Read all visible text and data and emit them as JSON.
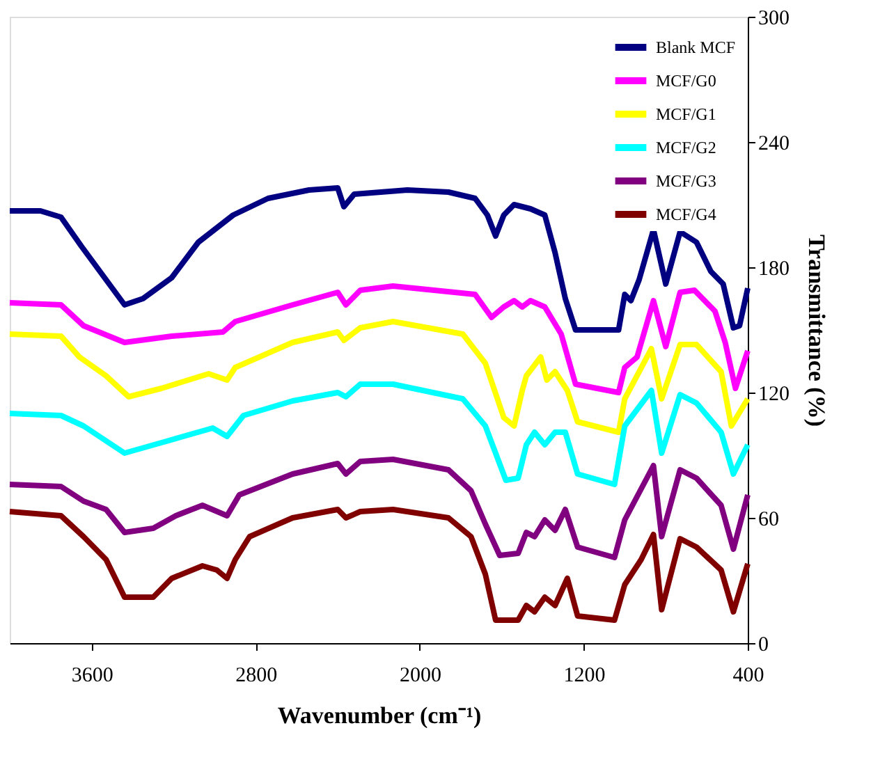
{
  "chart_data": {
    "type": "line",
    "xlabel": "Wavenumber (cm⁻¹)",
    "ylabel": "Transmittance (%)",
    "xlim": [
      4000,
      400
    ],
    "ylim": [
      0,
      300
    ],
    "xticks": [
      3600,
      2800,
      2000,
      1200,
      400
    ],
    "yticks": [
      0,
      60,
      120,
      180,
      240,
      300
    ],
    "grid": false,
    "legend": "top right",
    "marker": "none",
    "line_style": "solid",
    "series": [
      {
        "name": "Blank MCF",
        "color": "#000080",
        "x": [
          4000,
          3850,
          3750,
          3650,
          3440,
          3350,
          3210,
          3080,
          2910,
          2740,
          2540,
          2400,
          2370,
          2320,
          2060,
          1860,
          1730,
          1670,
          1630,
          1590,
          1540,
          1460,
          1390,
          1340,
          1290,
          1240,
          1030,
          1000,
          970,
          930,
          860,
          800,
          730,
          650,
          580,
          520,
          470,
          440,
          400
        ],
        "values": [
          207,
          207,
          204,
          190,
          162,
          165,
          175,
          192,
          205,
          213,
          217,
          218,
          209,
          215,
          217,
          216,
          213,
          205,
          195,
          205,
          210,
          208,
          205,
          187,
          165,
          150,
          150,
          167,
          164,
          174,
          198,
          172,
          197,
          192,
          178,
          172,
          151,
          152,
          170
        ]
      },
      {
        "name": "MCF/G0",
        "color": "#ff00ff",
        "x": [
          4000,
          3750,
          3640,
          3440,
          3210,
          2960,
          2900,
          2620,
          2400,
          2360,
          2290,
          2130,
          1730,
          1650,
          1590,
          1540,
          1500,
          1460,
          1390,
          1310,
          1240,
          1030,
          1000,
          940,
          860,
          800,
          730,
          660,
          560,
          510,
          460,
          400
        ],
        "values": [
          163,
          162,
          152,
          144,
          147,
          149,
          154,
          162,
          168,
          162,
          169,
          171,
          167,
          156,
          161,
          164,
          161,
          164,
          161,
          148,
          124,
          120,
          132,
          137,
          164,
          142,
          168,
          169,
          159,
          144,
          122,
          140
        ]
      },
      {
        "name": "MCF/G1",
        "color": "#ffff00",
        "x": [
          4000,
          3750,
          3660,
          3530,
          3420,
          3260,
          3030,
          2940,
          2900,
          2620,
          2400,
          2370,
          2290,
          2130,
          1790,
          1680,
          1590,
          1540,
          1500,
          1480,
          1410,
          1380,
          1340,
          1280,
          1230,
          1030,
          1000,
          870,
          820,
          730,
          650,
          530,
          480,
          400
        ],
        "values": [
          148,
          147,
          137,
          128,
          118,
          122,
          129,
          126,
          132,
          144,
          149,
          145,
          151,
          154,
          148,
          134,
          108,
          104,
          121,
          128,
          137,
          126,
          130,
          121,
          106,
          101,
          117,
          141,
          117,
          143,
          143,
          130,
          104,
          117
        ]
      },
      {
        "name": "MCF/G2",
        "color": "#00ffff",
        "x": [
          4000,
          3750,
          3640,
          3440,
          3260,
          3010,
          2940,
          2860,
          2620,
          2400,
          2360,
          2290,
          2130,
          1790,
          1680,
          1580,
          1520,
          1480,
          1440,
          1390,
          1340,
          1290,
          1230,
          1050,
          1000,
          870,
          820,
          730,
          650,
          530,
          470,
          400
        ],
        "values": [
          110,
          109,
          104,
          91,
          96,
          103,
          99,
          109,
          116,
          120,
          118,
          124,
          124,
          117,
          104,
          78,
          79,
          95,
          101,
          95,
          101,
          101,
          81,
          76,
          104,
          121,
          91,
          119,
          115,
          101,
          81,
          95
        ]
      },
      {
        "name": "MCF/G3",
        "color": "#800080",
        "x": [
          4000,
          3750,
          3640,
          3530,
          3440,
          3300,
          3190,
          3060,
          2940,
          2880,
          2620,
          2400,
          2360,
          2290,
          2130,
          1860,
          1750,
          1680,
          1610,
          1520,
          1480,
          1440,
          1390,
          1340,
          1290,
          1230,
          1050,
          1000,
          860,
          820,
          730,
          650,
          530,
          470,
          400
        ],
        "values": [
          76,
          75,
          68,
          64,
          53,
          55,
          61,
          66,
          61,
          71,
          81,
          86,
          81,
          87,
          88,
          83,
          73,
          57,
          42,
          43,
          53,
          51,
          59,
          54,
          64,
          46,
          41,
          59,
          85,
          51,
          83,
          79,
          66,
          45,
          71
        ]
      },
      {
        "name": "MCF/G4",
        "color": "#800000",
        "x": [
          4000,
          3750,
          3640,
          3530,
          3440,
          3300,
          3210,
          3060,
          2990,
          2940,
          2900,
          2830,
          2620,
          2400,
          2360,
          2290,
          2130,
          1860,
          1750,
          1680,
          1630,
          1520,
          1480,
          1440,
          1390,
          1340,
          1280,
          1230,
          1050,
          1000,
          920,
          860,
          820,
          730,
          650,
          530,
          470,
          400
        ],
        "values": [
          63,
          61,
          51,
          40,
          22,
          22,
          31,
          37,
          35,
          31,
          40,
          51,
          60,
          64,
          60,
          63,
          64,
          60,
          51,
          33,
          11,
          11,
          18,
          15,
          22,
          18,
          31,
          13,
          11,
          28,
          40,
          52,
          16,
          50,
          46,
          35,
          15,
          38
        ]
      }
    ]
  }
}
